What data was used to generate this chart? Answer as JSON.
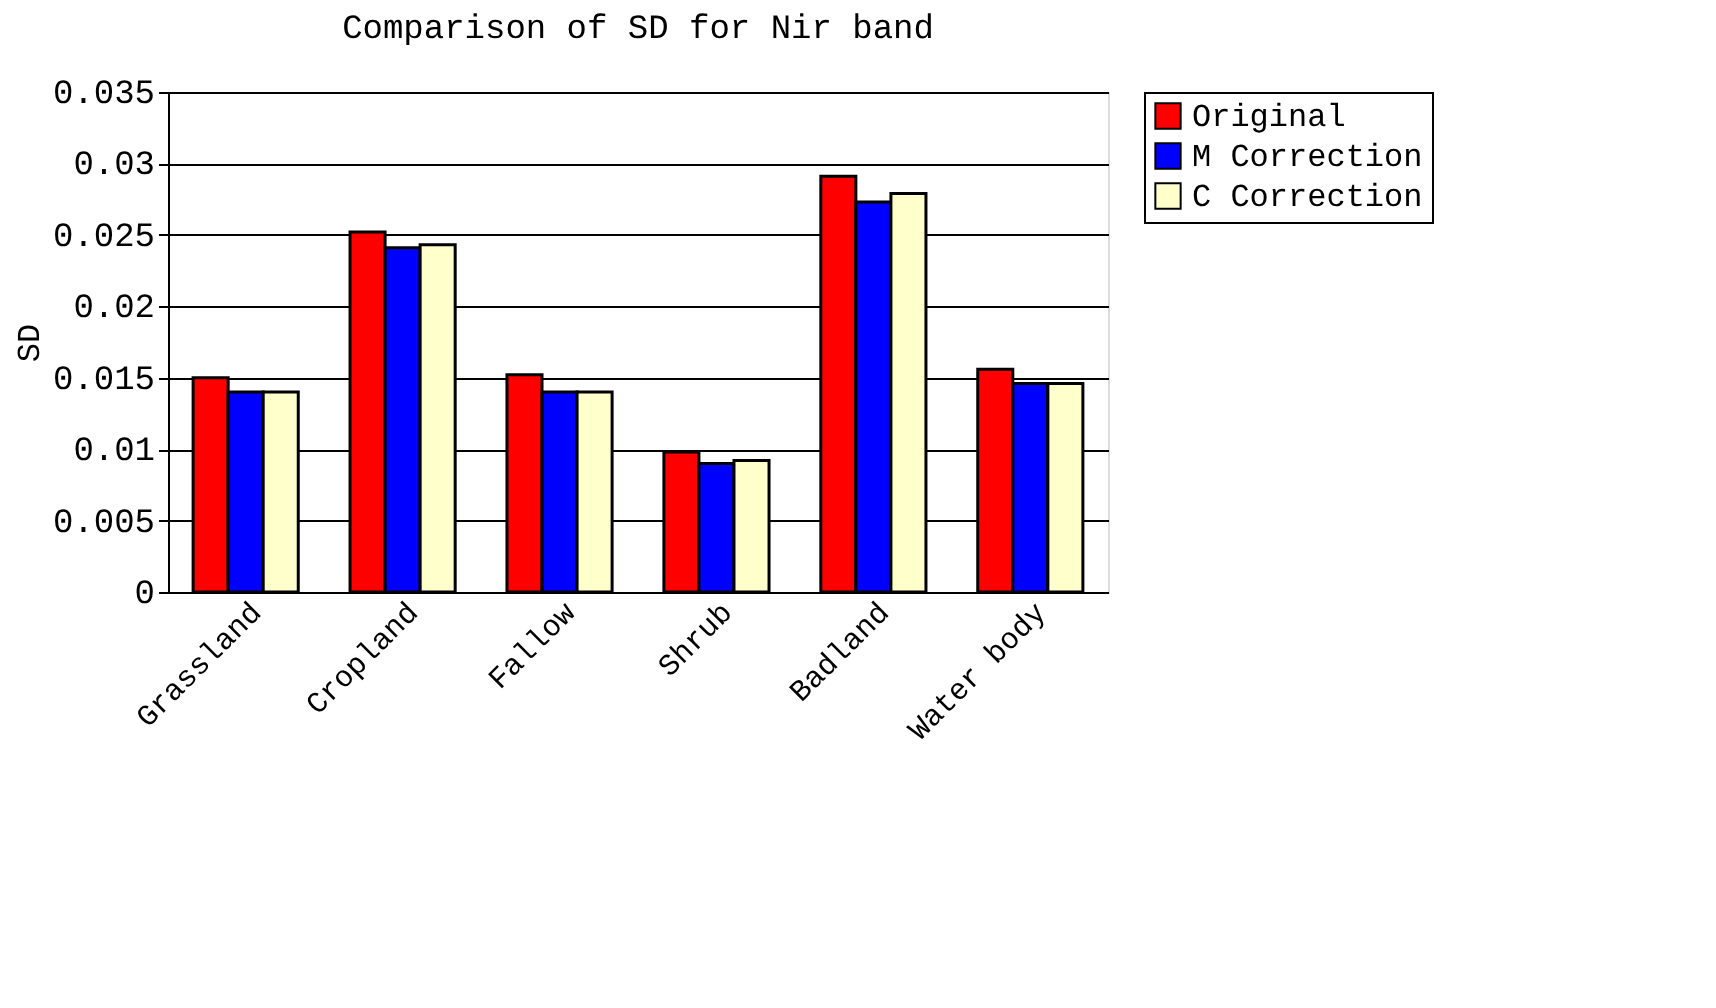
{
  "chart_data": {
    "type": "bar",
    "title": "Comparison of SD for Nir band",
    "ylabel": "SD",
    "categories": [
      "Grassland",
      "Cropland",
      "Fallow",
      "Shrub",
      "Badland",
      "Water body"
    ],
    "series": [
      {
        "name": "Original",
        "color": "#ff0000",
        "values": [
          0.015,
          0.0252,
          0.0152,
          0.0098,
          0.0291,
          0.0156
        ]
      },
      {
        "name": "M Correction",
        "color": "#0000ff",
        "values": [
          0.014,
          0.0241,
          0.014,
          0.009,
          0.0273,
          0.0146
        ]
      },
      {
        "name": "C Correction",
        "color": "#ffffcc",
        "values": [
          0.014,
          0.0243,
          0.014,
          0.0092,
          0.0279,
          0.0146
        ]
      }
    ],
    "ylim": [
      0,
      0.035
    ],
    "yticks": [
      0,
      0.005,
      0.01,
      0.015,
      0.02,
      0.025,
      0.03,
      0.035
    ],
    "grid": "y",
    "legend": "right"
  }
}
